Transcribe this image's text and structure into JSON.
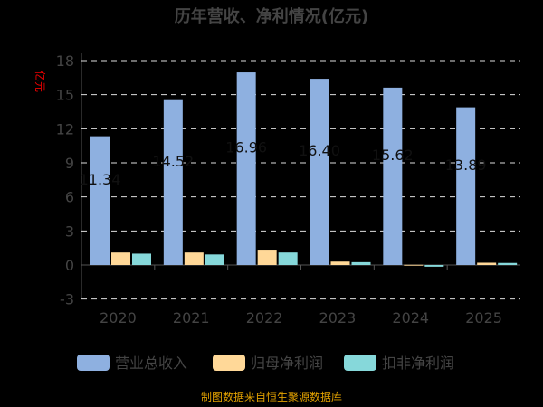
{
  "chart_data": {
    "type": "bar",
    "title": "历年营收、净利情况(亿元)",
    "ylabel": "亿元",
    "categories": [
      "2020",
      "2021",
      "2022",
      "2023",
      "2024",
      "2025"
    ],
    "yticks": [
      "18",
      "15",
      "12",
      "9",
      "6",
      "3",
      "0",
      "-3"
    ],
    "ylim": [
      -3,
      18
    ],
    "grid": true,
    "legend_position": "bottom",
    "series": [
      {
        "name": "营业总收入",
        "color": "#8eb0e0",
        "values": [
          11.34,
          14.52,
          16.96,
          16.4,
          15.62,
          13.89
        ],
        "labels": [
          "11.34",
          "14.52",
          "16.96",
          "16.40",
          "15.62",
          "13.89"
        ]
      },
      {
        "name": "归母净利润",
        "color": "#ffd898",
        "values": [
          1.1,
          1.1,
          1.35,
          0.3,
          0.02,
          0.2
        ]
      },
      {
        "name": "扣非净利润",
        "color": "#86d8da",
        "values": [
          1.0,
          0.93,
          1.1,
          0.25,
          -0.15,
          0.18
        ]
      }
    ]
  },
  "footer": "制图数据来自恒生聚源数据库"
}
